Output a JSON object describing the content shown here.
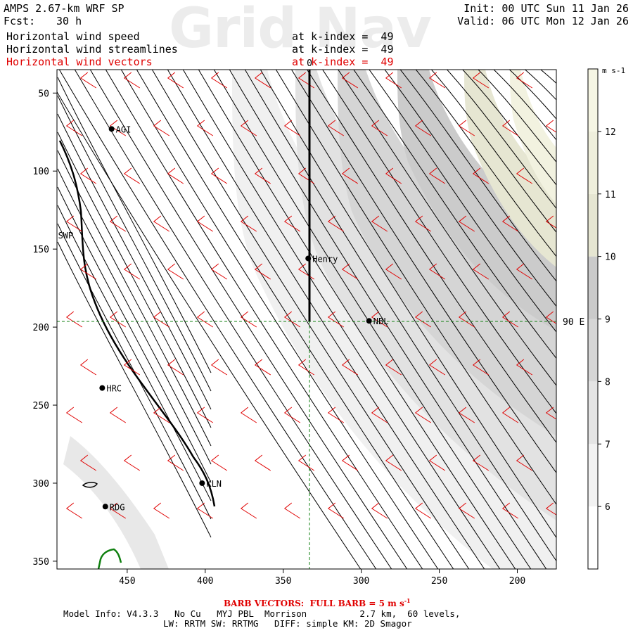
{
  "header": {
    "model": "AMPS 2.67-km WRF SP",
    "fcst_label": "Fcst:",
    "fcst_value": "30 h",
    "init": "Init: 00 UTC Sun 11 Jan 26",
    "valid": "Valid: 06 UTC Mon 12 Jan 26",
    "watermark": "Grid Nav",
    "fields": [
      {
        "label": "Horizontal wind speed",
        "level": "at k-index =  49",
        "color": "#000000"
      },
      {
        "label": "Horizontal wind streamlines",
        "level": "at k-index =  49",
        "color": "#000000"
      },
      {
        "label": "Horizontal wind vectors",
        "level": "at k-index =  49",
        "color": "#e00000"
      }
    ]
  },
  "axes": {
    "x_ticks": [
      450,
      400,
      350,
      300,
      250,
      200
    ],
    "x_range": [
      495,
      175
    ],
    "y_ticks": [
      50,
      100,
      150,
      200,
      250,
      300,
      350
    ],
    "y_range": [
      35,
      355
    ],
    "meridian_label": "90 E",
    "top_marker": "0"
  },
  "colorbar": {
    "unit": "m s-1",
    "levels": [
      6,
      7,
      8,
      9,
      10,
      11,
      12
    ],
    "colors": [
      "#ffffff",
      "#f2f2f2",
      "#e4e4e4",
      "#d6d6d6",
      "#cacaca",
      "#e6e6d2",
      "#efefdc",
      "#f6f6e4"
    ]
  },
  "stations": [
    {
      "name": "AGI",
      "x": 460,
      "y": 73
    },
    {
      "name": "SWP",
      "x": 497,
      "y": 141
    },
    {
      "name": "Henry",
      "x": 334,
      "y": 156
    },
    {
      "name": "NBL",
      "x": 295,
      "y": 196
    },
    {
      "name": "HRC",
      "x": 466,
      "y": 239
    },
    {
      "name": "KLN",
      "x": 402,
      "y": 300
    },
    {
      "name": "RDG",
      "x": 464,
      "y": 315
    }
  ],
  "footer": {
    "barb_text": "BARB VECTORS:  FULL BARB = 5 m s",
    "barb_exp": "-1",
    "line1": "Model Info: V4.3.3   No Cu   MYJ PBL  Morrison          2.7 km,  60 levels,",
    "line2": "LW: RRTM SW: RRTMG   DIFF: simple KM: 2D Smagor"
  }
}
